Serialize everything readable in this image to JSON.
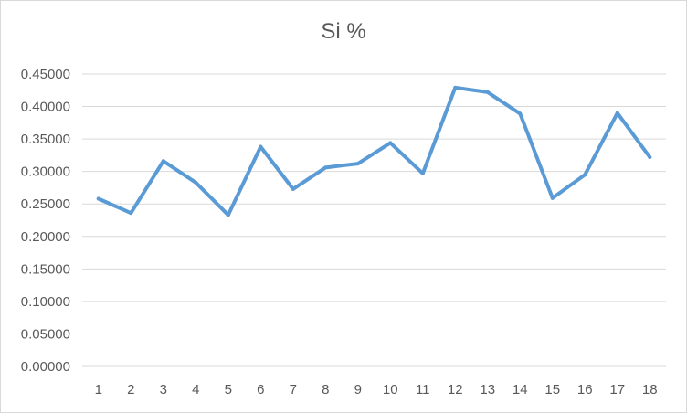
{
  "chart_data": {
    "type": "line",
    "title": "Si %",
    "xlabel": "",
    "ylabel": "",
    "categories": [
      "1",
      "2",
      "3",
      "4",
      "5",
      "6",
      "7",
      "8",
      "9",
      "10",
      "11",
      "12",
      "13",
      "14",
      "15",
      "16",
      "17",
      "18"
    ],
    "series": [
      {
        "values": [
          0.258,
          0.236,
          0.316,
          0.283,
          0.233,
          0.338,
          0.273,
          0.306,
          0.312,
          0.344,
          0.297,
          0.429,
          0.422,
          0.389,
          0.259,
          0.295,
          0.39,
          0.322
        ]
      }
    ],
    "ylim": [
      0,
      0.45
    ],
    "yticks": [
      "0.00000",
      "0.05000",
      "0.10000",
      "0.15000",
      "0.20000",
      "0.25000",
      "0.30000",
      "0.35000",
      "0.40000",
      "0.45000"
    ],
    "ytick_values": [
      0,
      0.05,
      0.1,
      0.15,
      0.2,
      0.25,
      0.3,
      0.35,
      0.4,
      0.45
    ],
    "grid": true,
    "legend": "none",
    "line_color": "#5b9bd5",
    "grid_color": "#d9d9d9",
    "text_color": "#595959"
  }
}
